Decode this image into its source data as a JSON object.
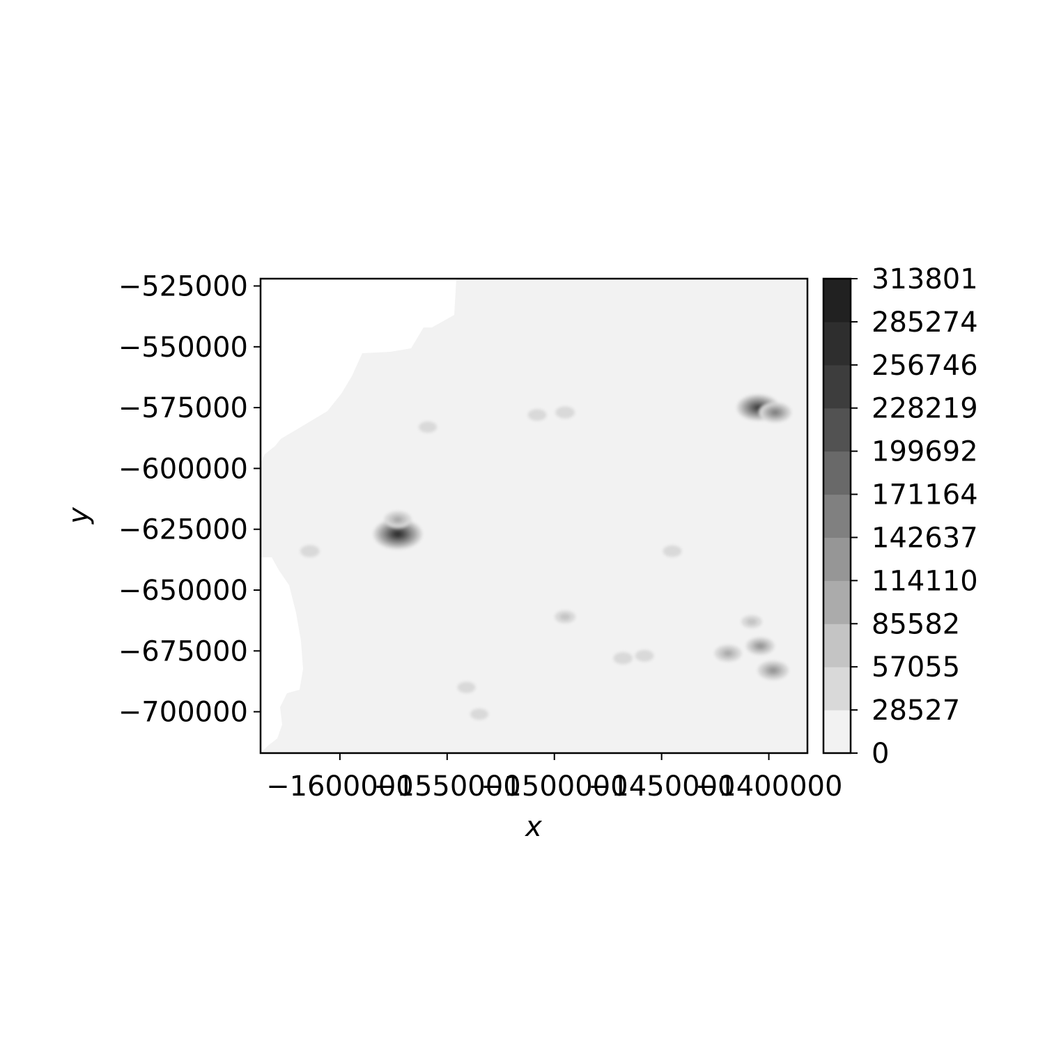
{
  "chart_data": {
    "type": "heatmap",
    "style": "filled-contour",
    "colormap": "greys",
    "title": "",
    "xlabel": "x",
    "ylabel": "y",
    "xlim": [
      -1637000,
      -1382000
    ],
    "ylim": [
      -717000,
      -522000
    ],
    "x_ticks": [
      -1600000,
      -1550000,
      -1500000,
      -1450000,
      -1400000
    ],
    "x_tick_labels": [
      "−1600000",
      "−1550000",
      "−1500000",
      "−1450000",
      "−1400000"
    ],
    "y_ticks": [
      -525000,
      -550000,
      -575000,
      -600000,
      -625000,
      -650000,
      -675000,
      -700000
    ],
    "y_tick_labels": [
      "−525000",
      "−550000",
      "−575000",
      "−600000",
      "−625000",
      "−650000",
      "−675000",
      "−700000"
    ],
    "colorbar": {
      "levels": [
        0,
        28527,
        57055,
        85582,
        114110,
        142637,
        171164,
        199692,
        228219,
        256746,
        285274,
        313801
      ],
      "tick_labels": [
        "0",
        "28527",
        "57055",
        "85582",
        "114110",
        "142637",
        "171164",
        "199692",
        "228219",
        "256746",
        "285274",
        "313801"
      ],
      "band_colors": [
        "#f2f2f2",
        "#d9d9d9",
        "#c4c4c4",
        "#ababab",
        "#969696",
        "#808080",
        "#696969",
        "#525252",
        "#3d3d3d",
        "#2e2e2e",
        "#212121",
        "#0d0d0d"
      ]
    },
    "background_value_band": 0,
    "no_data_color": "#ffffff",
    "hotspots": [
      {
        "x": -1405000,
        "y": -575000,
        "peak": 230000
      },
      {
        "x": -1397000,
        "y": -577000,
        "peak": 150000
      },
      {
        "x": -1404000,
        "y": -673000,
        "peak": 120000
      },
      {
        "x": -1398000,
        "y": -683000,
        "peak": 140000
      },
      {
        "x": -1419000,
        "y": -676000,
        "peak": 110000
      },
      {
        "x": -1573000,
        "y": -627000,
        "peak": 280000
      },
      {
        "x": -1573000,
        "y": -621000,
        "peak": 110000
      },
      {
        "x": -1495000,
        "y": -661000,
        "peak": 60000
      },
      {
        "x": -1468000,
        "y": -678000,
        "peak": 50000
      },
      {
        "x": -1458000,
        "y": -677000,
        "peak": 45000
      },
      {
        "x": -1445000,
        "y": -634000,
        "peak": 45000
      },
      {
        "x": -1614000,
        "y": -634000,
        "peak": 50000
      },
      {
        "x": -1495000,
        "y": -577000,
        "peak": 50000
      },
      {
        "x": -1508000,
        "y": -578000,
        "peak": 45000
      },
      {
        "x": -1535000,
        "y": -701000,
        "peak": 40000
      },
      {
        "x": -1541000,
        "y": -690000,
        "peak": 40000
      },
      {
        "x": -1559000,
        "y": -583000,
        "peak": 40000
      },
      {
        "x": -1408000,
        "y": -663000,
        "peak": 60000
      }
    ]
  }
}
